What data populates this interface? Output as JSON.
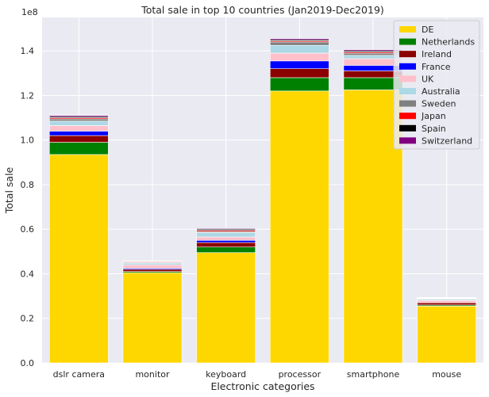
{
  "chart_data": {
    "type": "bar",
    "stacked": true,
    "title": "Total sale in top 10 countries (Jan2019-Dec2019)",
    "xlabel": "Electronic categories",
    "ylabel": "Total sale",
    "y_offset_label": "1e8",
    "ylim": [
      0,
      1.55
    ],
    "y_ticks": [
      0.0,
      0.2,
      0.4,
      0.6,
      0.8,
      1.0,
      1.2,
      1.4
    ],
    "y_tick_labels": [
      "0.0",
      "0.2",
      "0.4",
      "0.6",
      "0.8",
      "1.0",
      "1.2",
      "1.4"
    ],
    "grid": true,
    "legend_position": "top-right",
    "categories": [
      "dslr camera",
      "monitor",
      "keyboard",
      "processor",
      "smartphone",
      "mouse"
    ],
    "series": [
      {
        "name": "DE",
        "color": "#ffd700",
        "values": [
          0.935,
          0.405,
          0.495,
          1.22,
          1.225,
          0.255
        ]
      },
      {
        "name": "Netherlands",
        "color": "#008000",
        "values": [
          0.055,
          0.005,
          0.025,
          0.06,
          0.055,
          0.005
        ]
      },
      {
        "name": "Ireland",
        "color": "#8b0000",
        "values": [
          0.03,
          0.01,
          0.02,
          0.04,
          0.03,
          0.01
        ]
      },
      {
        "name": "France",
        "color": "#0000ff",
        "values": [
          0.02,
          0.005,
          0.01,
          0.035,
          0.025,
          0.0
        ]
      },
      {
        "name": "UK",
        "color": "#ffc0cb",
        "values": [
          0.025,
          0.015,
          0.015,
          0.035,
          0.03,
          0.01
        ]
      },
      {
        "name": "Australia",
        "color": "#add8e6",
        "values": [
          0.02,
          0.008,
          0.02,
          0.035,
          0.015,
          0.005
        ]
      },
      {
        "name": "Sweden",
        "color": "#808080",
        "values": [
          0.01,
          0.003,
          0.005,
          0.015,
          0.01,
          0.003
        ]
      },
      {
        "name": "Japan",
        "color": "#ff0000",
        "values": [
          0.005,
          0.003,
          0.005,
          0.005,
          0.005,
          0.002
        ]
      },
      {
        "name": "Spain",
        "color": "#000000",
        "values": [
          0.005,
          0.002,
          0.005,
          0.005,
          0.005,
          0.002
        ]
      },
      {
        "name": "Switzerland",
        "color": "#800080",
        "values": [
          0.005,
          0.002,
          0.003,
          0.005,
          0.005,
          0.002
        ]
      }
    ]
  }
}
